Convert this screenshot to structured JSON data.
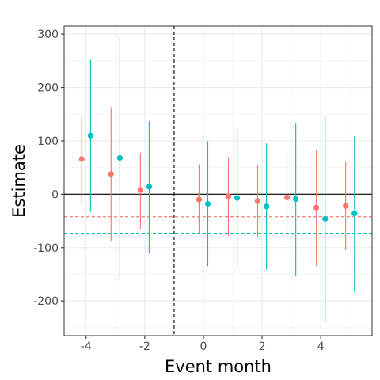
{
  "chart_data": {
    "type": "scatter",
    "xlabel": "Event month",
    "ylabel": "Estimate",
    "xlim": [
      -4.75,
      5.75
    ],
    "ylim": [
      -265,
      315
    ],
    "x_ticks": [
      -4,
      -2,
      0,
      2,
      4
    ],
    "x_tick_labels": [
      "-4",
      "-2",
      "0",
      "2",
      "4"
    ],
    "y_ticks": [
      -200,
      -100,
      0,
      100,
      200,
      300
    ],
    "y_tick_labels": [
      "-200",
      "-100",
      "0",
      "100",
      "200",
      "300"
    ],
    "grid": true,
    "legend": "none",
    "reference_lines": {
      "zero_hline": 0,
      "event_vline": -1
    },
    "series": [
      {
        "color": "#F8766D",
        "mean_hline": -42,
        "points": [
          {
            "x": -4.15,
            "y": 66,
            "low": -17,
            "high": 148
          },
          {
            "x": -3.15,
            "y": 38,
            "low": -87,
            "high": 163
          },
          {
            "x": -2.15,
            "y": 8,
            "low": -65,
            "high": 78
          },
          {
            "x": -0.15,
            "y": -10,
            "low": -75,
            "high": 56
          },
          {
            "x": 0.85,
            "y": -4,
            "low": -78,
            "high": 70
          },
          {
            "x": 1.85,
            "y": -13,
            "low": -80,
            "high": 55
          },
          {
            "x": 2.85,
            "y": -6,
            "low": -88,
            "high": 76
          },
          {
            "x": 3.85,
            "y": -25,
            "low": -135,
            "high": 84
          },
          {
            "x": 4.85,
            "y": -22,
            "low": -105,
            "high": 60
          }
        ]
      },
      {
        "color": "#00BFC4",
        "mean_hline": -73,
        "points": [
          {
            "x": -3.85,
            "y": 110,
            "low": -33,
            "high": 252
          },
          {
            "x": -2.85,
            "y": 68,
            "low": -158,
            "high": 293
          },
          {
            "x": -1.85,
            "y": 14,
            "low": -110,
            "high": 137
          },
          {
            "x": 0.15,
            "y": -18,
            "low": -135,
            "high": 99
          },
          {
            "x": 1.15,
            "y": -7,
            "low": -137,
            "high": 123
          },
          {
            "x": 2.15,
            "y": -23,
            "low": -141,
            "high": 95
          },
          {
            "x": 3.15,
            "y": -9,
            "low": -152,
            "high": 134
          },
          {
            "x": 4.15,
            "y": -46,
            "low": -240,
            "high": 148
          },
          {
            "x": 5.15,
            "y": -36,
            "low": -183,
            "high": 109
          }
        ]
      }
    ]
  }
}
